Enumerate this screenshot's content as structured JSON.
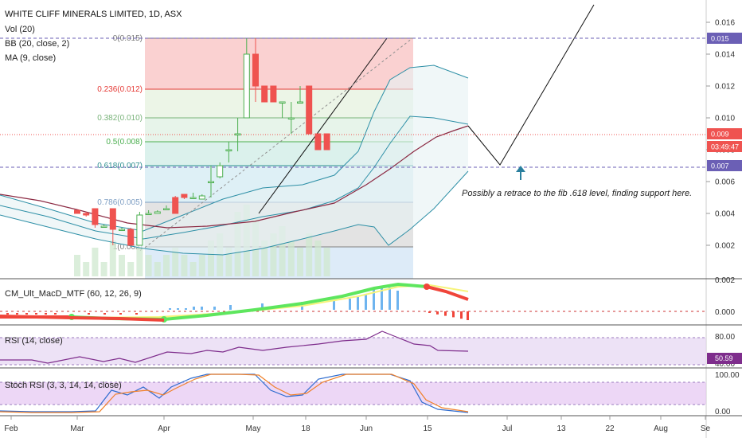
{
  "chart_data": {
    "type": "candlestick",
    "title": "WHITE CLIFF MINERALS LIMITED, 1D, ASX",
    "legend": [
      "Vol (20)",
      "BB (20, close, 2)",
      "MA (9, close)"
    ],
    "x_tick_labels": [
      "Feb",
      "Mar",
      "Apr",
      "May",
      "18",
      "Jun",
      "15",
      "Jul",
      "13",
      "22",
      "Aug",
      "Se"
    ],
    "y_tick_labels": [
      "0.016",
      "0.014",
      "0.012",
      "0.010",
      "0.008",
      "0.006",
      "0.004",
      "0.002"
    ],
    "ylim": [
      0.001,
      0.017
    ],
    "price_tags": [
      {
        "label": "0.015",
        "value": 0.015,
        "color": "#6b5fb5"
      },
      {
        "label": "0.009",
        "value": 0.009,
        "color": "#ef5350"
      },
      {
        "label": "03:49:47",
        "value": 0.0082,
        "color": "#ef5350"
      },
      {
        "label": "0.007",
        "value": 0.007,
        "color": "#6b5fb5"
      }
    ],
    "fib_levels": [
      {
        "label": "0(0.015)",
        "value": 0.015,
        "color": "#787878",
        "fill": "#f9c9c9"
      },
      {
        "label": "0.236(0.012)",
        "value": 0.0118,
        "color": "#e53935",
        "fill": "#e9f3e3"
      },
      {
        "label": "0.382(0.010)",
        "value": 0.01,
        "color": "#79b37a",
        "fill": "#e3f2e6"
      },
      {
        "label": "0.5(0.008)",
        "value": 0.0085,
        "color": "#4caf50",
        "fill": "#d5eee9"
      },
      {
        "label": "0.618(0.007)",
        "value": 0.007,
        "color": "#2a8e8e",
        "fill": "#d8edf4"
      },
      {
        "label": "0.786(0.005)",
        "value": 0.0047,
        "color": "#7f9fc4",
        "fill": "#dedede"
      },
      {
        "label": "1(0.002)",
        "value": 0.0019,
        "color": "#808080",
        "fill": "#d7e7f7"
      }
    ],
    "candles": [
      {
        "i": 0,
        "o": 0.0042,
        "h": 0.0042,
        "l": 0.004,
        "c": 0.004
      },
      {
        "i": 1,
        "o": 0.004,
        "h": 0.0041,
        "l": 0.0038,
        "c": 0.0039
      },
      {
        "i": 2,
        "o": 0.0043,
        "h": 0.0043,
        "l": 0.0031,
        "c": 0.0033
      },
      {
        "i": 3,
        "o": 0.0032,
        "h": 0.0033,
        "l": 0.0031,
        "c": 0.0032
      },
      {
        "i": 4,
        "o": 0.0043,
        "h": 0.0043,
        "l": 0.002,
        "c": 0.003
      },
      {
        "i": 5,
        "o": 0.003,
        "h": 0.0031,
        "l": 0.0029,
        "c": 0.003
      },
      {
        "i": 6,
        "o": 0.003,
        "h": 0.0031,
        "l": 0.002,
        "c": 0.002
      },
      {
        "i": 7,
        "o": 0.002,
        "h": 0.0041,
        "l": 0.002,
        "c": 0.0039
      },
      {
        "i": 8,
        "o": 0.004,
        "h": 0.0042,
        "l": 0.0039,
        "c": 0.004
      },
      {
        "i": 9,
        "o": 0.004,
        "h": 0.0042,
        "l": 0.004,
        "c": 0.0041
      },
      {
        "i": 10,
        "o": 0.0043,
        "h": 0.0045,
        "l": 0.0042,
        "c": 0.0043
      },
      {
        "i": 11,
        "o": 0.005,
        "h": 0.0051,
        "l": 0.004,
        "c": 0.004
      },
      {
        "i": 12,
        "o": 0.0052,
        "h": 0.0052,
        "l": 0.0049,
        "c": 0.005
      },
      {
        "i": 13,
        "o": 0.005,
        "h": 0.0053,
        "l": 0.005,
        "c": 0.005
      },
      {
        "i": 14,
        "o": 0.0049,
        "h": 0.0052,
        "l": 0.0049,
        "c": 0.0051
      },
      {
        "i": 15,
        "o": 0.006,
        "h": 0.007,
        "l": 0.005,
        "c": 0.006
      },
      {
        "i": 16,
        "o": 0.0063,
        "h": 0.0072,
        "l": 0.0062,
        "c": 0.007
      },
      {
        "i": 17,
        "o": 0.008,
        "h": 0.0085,
        "l": 0.0072,
        "c": 0.008
      },
      {
        "i": 18,
        "o": 0.009,
        "h": 0.01,
        "l": 0.0079,
        "c": 0.009
      },
      {
        "i": 19,
        "o": 0.01,
        "h": 0.015,
        "l": 0.01,
        "c": 0.014
      },
      {
        "i": 20,
        "o": 0.014,
        "h": 0.015,
        "l": 0.011,
        "c": 0.012
      },
      {
        "i": 21,
        "o": 0.012,
        "h": 0.012,
        "l": 0.011,
        "c": 0.011
      },
      {
        "i": 22,
        "o": 0.012,
        "h": 0.012,
        "l": 0.011,
        "c": 0.011
      },
      {
        "i": 23,
        "o": 0.011,
        "h": 0.011,
        "l": 0.01,
        "c": 0.011
      },
      {
        "i": 24,
        "o": 0.01,
        "h": 0.011,
        "l": 0.009,
        "c": 0.01
      },
      {
        "i": 25,
        "o": 0.011,
        "h": 0.012,
        "l": 0.011,
        "c": 0.011
      },
      {
        "i": 26,
        "o": 0.012,
        "h": 0.012,
        "l": 0.009,
        "c": 0.009
      },
      {
        "i": 27,
        "o": 0.009,
        "h": 0.009,
        "l": 0.008,
        "c": 0.008
      },
      {
        "i": 28,
        "o": 0.009,
        "h": 0.009,
        "l": 0.008,
        "c": 0.008
      }
    ],
    "annotation": "Possibly a retrace to the fib .618 level, finding support here.",
    "indicators": [
      {
        "name": "CM_Ult_MacD_MTF (60, 12, 26, 9)",
        "ticks": [
          "0.002",
          "0.000"
        ]
      },
      {
        "name": "RSI (14, close)",
        "ticks": [
          "80.00",
          "40.00"
        ],
        "value_label": "50.59"
      },
      {
        "name": "Stoch RSI (3, 3, 14, 14, close)",
        "ticks": [
          "100.00",
          "0.00"
        ]
      }
    ],
    "colors": {
      "up": "#4caf50",
      "down": "#ef5350",
      "ma": "#8b2942",
      "bb": "#2d8fa6",
      "bb_fill": "#e6f1f4",
      "vol": "#cfe8cf"
    }
  }
}
